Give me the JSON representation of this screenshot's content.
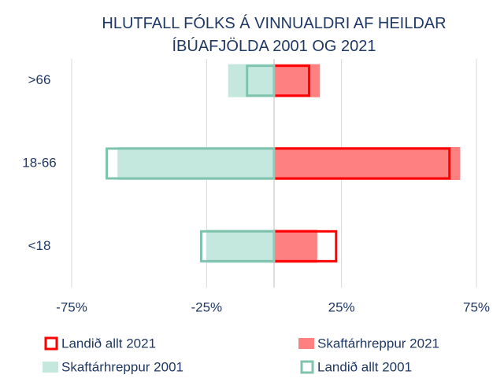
{
  "chart_data": {
    "type": "bar",
    "orientation": "horizontal",
    "title": "HLUTFALL FÓLKS Á VINNUALDRI AF HEILDAR ÍBÚAFJÖLDA 2001 OG 2021",
    "categories": [
      ">66",
      "18-66",
      "<18"
    ],
    "series": [
      {
        "name": "Landið allt 2021",
        "color": "#ff0000",
        "style": "outline",
        "values": [
          13,
          65,
          23
        ]
      },
      {
        "name": "Skaftárhreppur 2021",
        "color": "#ff8080",
        "style": "fill",
        "values": [
          17,
          69,
          16
        ]
      },
      {
        "name": "Skaftárhreppur 2001",
        "color": "#c4e8dd",
        "style": "fill",
        "values": [
          -17,
          -58,
          -25
        ]
      },
      {
        "name": "Landið allt 2001",
        "color": "#7fc3ae",
        "style": "outline",
        "values": [
          -10,
          -62,
          -27
        ]
      }
    ],
    "xlim": [
      -75,
      75
    ],
    "xticks": [
      {
        "value": -75,
        "label": "-75%"
      },
      {
        "value": -25,
        "label": "-25%"
      },
      {
        "value": 25,
        "label": "25%"
      },
      {
        "value": 75,
        "label": "75%"
      }
    ],
    "grid": true,
    "legend": "bottom"
  }
}
